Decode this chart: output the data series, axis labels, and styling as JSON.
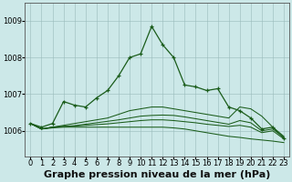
{
  "title": "Graphe pression niveau de la mer (hPa)",
  "bg_color": "#cce8e8",
  "grid_color": "#99bbbb",
  "line_color": "#1a5c1a",
  "xlim": [
    -0.5,
    23.5
  ],
  "ylim": [
    1005.3,
    1009.5
  ],
  "xticks": [
    0,
    1,
    2,
    3,
    4,
    5,
    6,
    7,
    8,
    9,
    10,
    11,
    12,
    13,
    14,
    15,
    16,
    17,
    18,
    19,
    20,
    21,
    22,
    23
  ],
  "yticks": [
    1006,
    1007,
    1008,
    1009
  ],
  "series_main": [
    1006.2,
    1006.1,
    1006.2,
    1006.8,
    1006.7,
    1006.65,
    1006.9,
    1007.1,
    1007.5,
    1008.0,
    1008.1,
    1008.85,
    1008.35,
    1008.0,
    1007.25,
    1007.2,
    1007.1,
    1007.15,
    1006.65,
    1006.55,
    1006.35,
    1006.05,
    1006.1,
    1005.8
  ],
  "series_flat1": [
    1006.2,
    1006.05,
    1006.1,
    1006.15,
    1006.2,
    1006.25,
    1006.3,
    1006.35,
    1006.45,
    1006.55,
    1006.6,
    1006.65,
    1006.65,
    1006.6,
    1006.55,
    1006.5,
    1006.45,
    1006.4,
    1006.35,
    1006.65,
    1006.6,
    1006.4,
    1006.1,
    1005.85
  ],
  "series_flat2": [
    1006.2,
    1006.05,
    1006.1,
    1006.12,
    1006.14,
    1006.18,
    1006.22,
    1006.26,
    1006.3,
    1006.35,
    1006.4,
    1006.42,
    1006.43,
    1006.42,
    1006.38,
    1006.33,
    1006.28,
    1006.23,
    1006.18,
    1006.28,
    1006.22,
    1006.0,
    1006.05,
    1005.82
  ],
  "series_flat3": [
    1006.2,
    1006.05,
    1006.1,
    1006.12,
    1006.13,
    1006.15,
    1006.17,
    1006.19,
    1006.22,
    1006.25,
    1006.28,
    1006.3,
    1006.3,
    1006.28,
    1006.25,
    1006.22,
    1006.18,
    1006.15,
    1006.12,
    1006.15,
    1006.1,
    1005.95,
    1006.0,
    1005.78
  ],
  "series_flat4": [
    1006.2,
    1006.05,
    1006.08,
    1006.1,
    1006.1,
    1006.1,
    1006.1,
    1006.1,
    1006.1,
    1006.1,
    1006.1,
    1006.1,
    1006.1,
    1006.08,
    1006.05,
    1006.0,
    1005.95,
    1005.9,
    1005.85,
    1005.82,
    1005.78,
    1005.75,
    1005.72,
    1005.68
  ],
  "title_fontsize": 8,
  "tick_fontsize": 6
}
